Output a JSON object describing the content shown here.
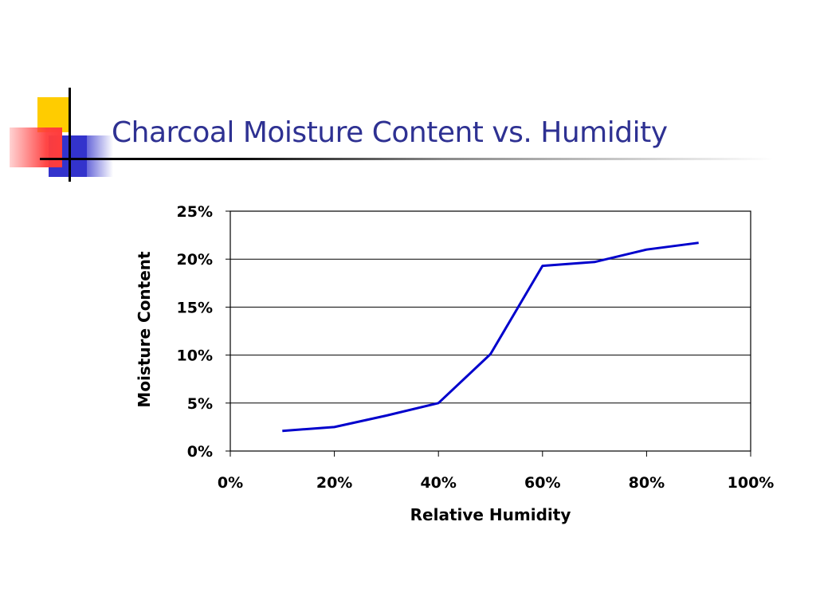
{
  "slide": {
    "title": "Charcoal Moisture Content vs. Humidity"
  },
  "colors": {
    "title": "#2e3192",
    "line": "#0000cc",
    "accent_yellow": "#ffcc00",
    "accent_blue": "#3333cc",
    "accent_red": "#ff3c3c"
  },
  "chart_data": {
    "type": "line",
    "title": "",
    "xlabel": "Relative Humidity",
    "ylabel": "Moisture Content",
    "x_ticks": [
      "0%",
      "20%",
      "40%",
      "60%",
      "80%",
      "100%"
    ],
    "y_ticks": [
      "0%",
      "5%",
      "10%",
      "15%",
      "20%",
      "25%"
    ],
    "xlim": [
      0,
      100
    ],
    "ylim": [
      0,
      25
    ],
    "grid": "horizontal",
    "legend": "none",
    "series": [
      {
        "x": [
          10,
          20,
          30,
          40,
          50,
          60,
          70,
          80,
          90
        ],
        "y": [
          2.1,
          2.5,
          3.7,
          5.0,
          10.1,
          19.3,
          19.7,
          21.0,
          21.7
        ]
      }
    ]
  }
}
